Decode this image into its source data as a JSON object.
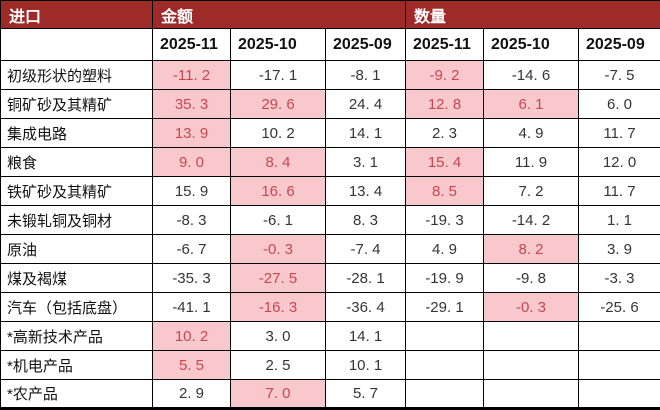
{
  "colors": {
    "header_band_red": "#9E2B28",
    "header_text_white": "#FFFFFF",
    "highlight_pink": "#F8C8CD",
    "highlight_text_red": "#C9474E",
    "body_text": "#353535",
    "gridline_black": "#000000"
  },
  "chart_data": {
    "type": "table",
    "row_header": "进口",
    "column_groups": [
      "金额",
      "数量"
    ],
    "months": [
      "2025-11",
      "2025-10",
      "2025-09"
    ],
    "rows": [
      {
        "label": "初级形状的塑料",
        "amount": [
          -11.2,
          -17.1,
          -8.1
        ],
        "amount_hl": [
          true,
          false,
          false
        ],
        "quantity": [
          -9.2,
          -14.6,
          -7.5
        ],
        "quantity_hl": [
          true,
          false,
          false
        ]
      },
      {
        "label": "铜矿砂及其精矿",
        "amount": [
          35.3,
          29.6,
          24.4
        ],
        "amount_hl": [
          true,
          true,
          false
        ],
        "quantity": [
          12.8,
          6.1,
          6.0
        ],
        "quantity_hl": [
          true,
          true,
          false
        ]
      },
      {
        "label": "集成电路",
        "amount": [
          13.9,
          10.2,
          14.1
        ],
        "amount_hl": [
          true,
          false,
          false
        ],
        "quantity": [
          2.3,
          4.9,
          11.7
        ],
        "quantity_hl": [
          false,
          false,
          false
        ]
      },
      {
        "label": "粮食",
        "amount": [
          9.0,
          8.4,
          3.1
        ],
        "amount_hl": [
          true,
          true,
          false
        ],
        "quantity": [
          15.4,
          11.9,
          12.0
        ],
        "quantity_hl": [
          true,
          false,
          false
        ]
      },
      {
        "label": "铁矿砂及其精矿",
        "amount": [
          15.9,
          16.6,
          13.4
        ],
        "amount_hl": [
          false,
          true,
          false
        ],
        "quantity": [
          8.5,
          7.2,
          11.7
        ],
        "quantity_hl": [
          true,
          false,
          false
        ]
      },
      {
        "label": "未锻轧铜及铜材",
        "amount": [
          -8.3,
          -6.1,
          8.3
        ],
        "amount_hl": [
          false,
          false,
          false
        ],
        "quantity": [
          -19.3,
          -14.2,
          1.1
        ],
        "quantity_hl": [
          false,
          false,
          false
        ]
      },
      {
        "label": "原油",
        "amount": [
          -6.7,
          -0.3,
          -7.4
        ],
        "amount_hl": [
          false,
          true,
          false
        ],
        "quantity": [
          4.9,
          8.2,
          3.9
        ],
        "quantity_hl": [
          false,
          true,
          false
        ]
      },
      {
        "label": "煤及褐煤",
        "amount": [
          -35.3,
          -27.5,
          -28.1
        ],
        "amount_hl": [
          false,
          true,
          false
        ],
        "quantity": [
          -19.9,
          -9.8,
          -3.3
        ],
        "quantity_hl": [
          false,
          false,
          false
        ]
      },
      {
        "label": "汽车（包括底盘）",
        "amount": [
          -41.1,
          -16.3,
          -36.4
        ],
        "amount_hl": [
          false,
          true,
          false
        ],
        "quantity": [
          -29.1,
          -0.3,
          -25.6
        ],
        "quantity_hl": [
          false,
          true,
          false
        ]
      },
      {
        "label": "*高新技术产品",
        "amount": [
          10.2,
          3.0,
          14.1
        ],
        "amount_hl": [
          true,
          false,
          false
        ],
        "quantity": [
          null,
          null,
          null
        ],
        "quantity_hl": [
          false,
          false,
          false
        ]
      },
      {
        "label": "*机电产品",
        "amount": [
          5.5,
          2.5,
          10.1
        ],
        "amount_hl": [
          true,
          false,
          false
        ],
        "quantity": [
          null,
          null,
          null
        ],
        "quantity_hl": [
          false,
          false,
          false
        ]
      },
      {
        "label": "*农产品",
        "amount": [
          2.9,
          7.0,
          5.7
        ],
        "amount_hl": [
          false,
          true,
          false
        ],
        "quantity": [
          null,
          null,
          null
        ],
        "quantity_hl": [
          false,
          false,
          false
        ]
      }
    ]
  }
}
